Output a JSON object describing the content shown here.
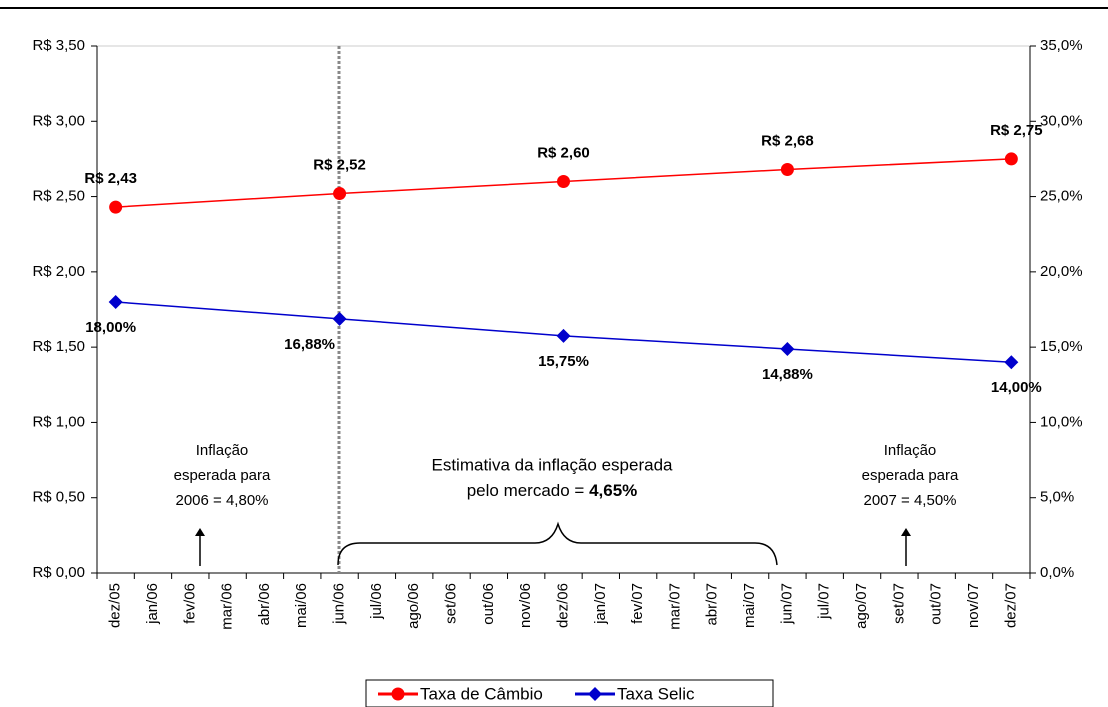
{
  "chart_data": {
    "type": "line",
    "categories": [
      "dez/05",
      "jan/06",
      "fev/06",
      "mar/06",
      "abr/06",
      "mai/06",
      "jun/06",
      "jul/06",
      "ago/06",
      "set/06",
      "out/06",
      "nov/06",
      "dez/06",
      "jan/07",
      "fev/07",
      "mar/07",
      "abr/07",
      "mai/07",
      "jun/07",
      "jul/07",
      "ago/07",
      "set/07",
      "out/07",
      "nov/07",
      "dez/07"
    ],
    "series": [
      {
        "name": "Taxa de Câmbio",
        "color": "#ff0000",
        "marker": "circle",
        "x": [
          "dez/05",
          "jun/06",
          "dez/06",
          "jun/07",
          "dez/07"
        ],
        "values": [
          2.43,
          2.52,
          2.6,
          2.68,
          2.75
        ],
        "value_labels": [
          "R$ 2,43",
          "R$ 2,52",
          "R$ 2,60",
          "R$ 2,68",
          "R$ 2,75"
        ]
      },
      {
        "name": "Taxa Selic",
        "color": "#0000cc",
        "marker": "diamond",
        "axis": "y2",
        "x": [
          "dez/05",
          "jun/06",
          "dez/06",
          "jun/07",
          "dez/07"
        ],
        "values": [
          18.0,
          16.88,
          15.75,
          14.88,
          14.0
        ],
        "value_labels": [
          "18,00%",
          "16,88%",
          "15,75%",
          "14,88%",
          "14,00%"
        ]
      }
    ],
    "ylim": [
      0,
      3.5
    ],
    "yticks": [
      {
        "value": 0,
        "label": "R$ 0,00"
      },
      {
        "value": 0.5,
        "label": "R$ 0,50"
      },
      {
        "value": 1,
        "label": "R$ 1,00"
      },
      {
        "value": 1.5,
        "label": "R$ 1,50"
      },
      {
        "value": 2,
        "label": "R$ 2,00"
      },
      {
        "value": 2.5,
        "label": "R$ 2,50"
      },
      {
        "value": 3,
        "label": "R$ 3,00"
      },
      {
        "value": 3.5,
        "label": "R$ 3,50"
      }
    ],
    "y2lim": [
      0,
      35
    ],
    "y2ticks": [
      {
        "value": 0,
        "label": "0,0%"
      },
      {
        "value": 5,
        "label": "5,0%"
      },
      {
        "value": 10,
        "label": "10,0%"
      },
      {
        "value": 15,
        "label": "15,0%"
      },
      {
        "value": 20,
        "label": "20,0%"
      },
      {
        "value": 25,
        "label": "25,0%"
      },
      {
        "value": 30,
        "label": "30,0%"
      },
      {
        "value": 35,
        "label": "35,0%"
      }
    ],
    "annotations": {
      "left": [
        "Inflação",
        "esperada para",
        "2006 = 4,80%"
      ],
      "middle": {
        "line1": "Estimativa da inflação esperada",
        "line2": "pelo mercado = ",
        "bold": "4,65%"
      },
      "right": [
        "Inflação",
        "esperada para",
        "2007 = 4,50%"
      ]
    },
    "legend": "bottom"
  }
}
